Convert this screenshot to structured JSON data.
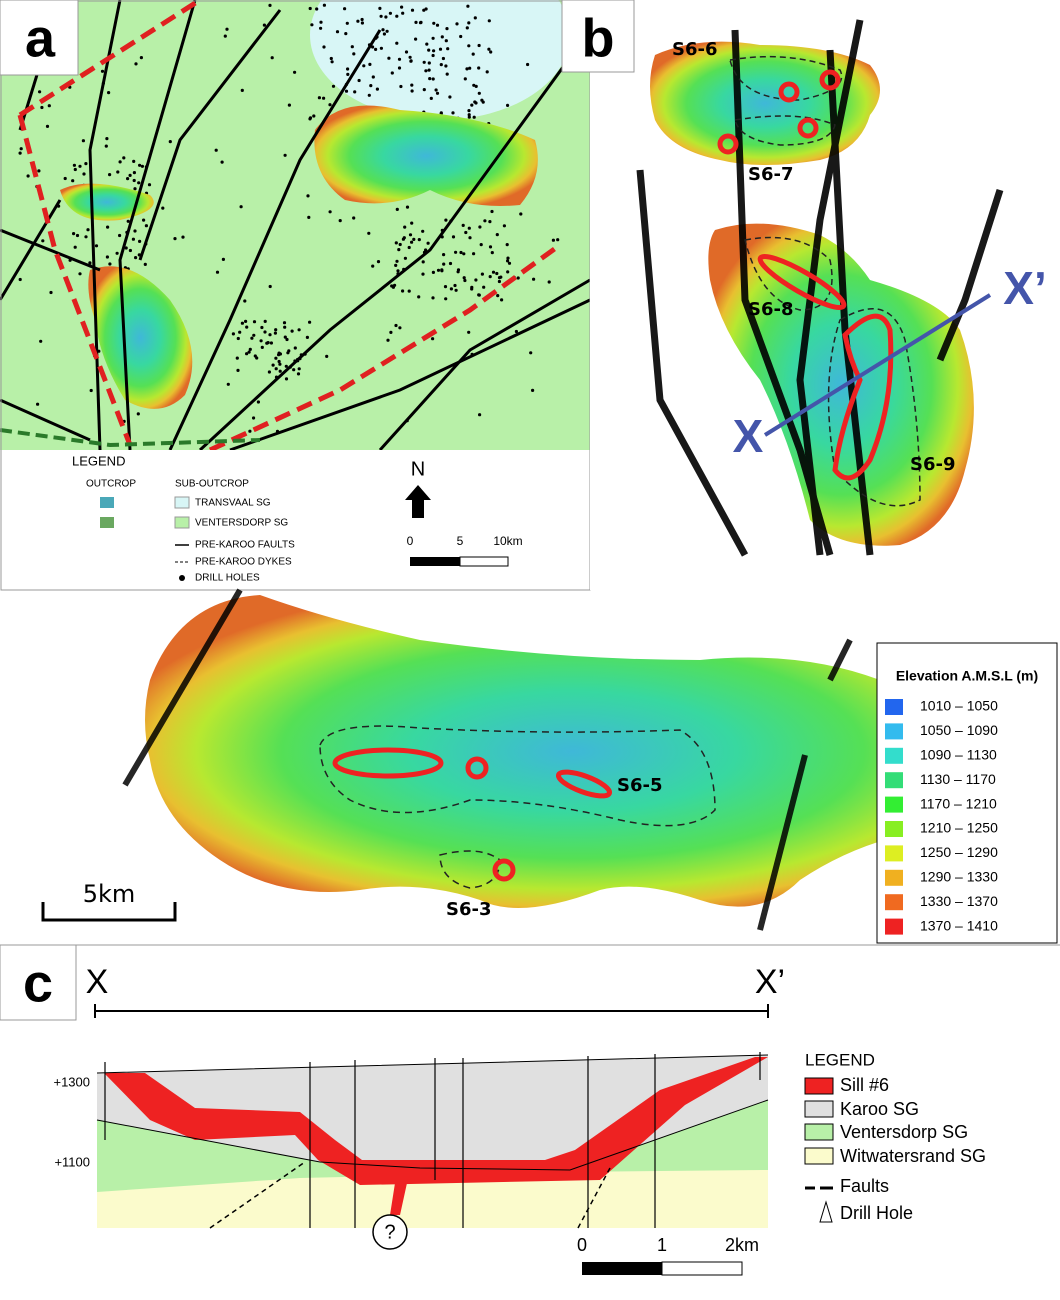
{
  "panel_a": {
    "label": "a",
    "legend": {
      "title": "LEGEND",
      "outcrop": "OUTCROP",
      "sub_outcrop": "SUB-OUTCROP",
      "items": [
        "TRANSVAAL SG",
        "VENTERSDORP SG",
        "PRE-KAROO FAULTS",
        "PRE-KAROO DYKES",
        "DRILL HOLES"
      ]
    },
    "north": "N",
    "scale": [
      "0",
      "5",
      "10km"
    ]
  },
  "panel_b": {
    "label": "b",
    "sills": [
      "S6-6",
      "S6-7",
      "S6-8",
      "S6-9"
    ],
    "section_start": "X",
    "section_end": "X’"
  },
  "panel_middle": {
    "sills": [
      "S6-5",
      "S6-3"
    ],
    "scale": "5km",
    "legend": {
      "title": "Elevation A.M.S.L (m)",
      "items": [
        {
          "label": "1010 – 1050",
          "color": "#2266ee"
        },
        {
          "label": "1050 – 1090",
          "color": "#33bbee"
        },
        {
          "label": "1090 – 1130",
          "color": "#33ddcc"
        },
        {
          "label": "1130 – 1170",
          "color": "#33dd77"
        },
        {
          "label": "1170 – 1210",
          "color": "#33ee33"
        },
        {
          "label": "1210 – 1250",
          "color": "#88ee22"
        },
        {
          "label": "1250 – 1290",
          "color": "#ddee22"
        },
        {
          "label": "1290 – 1330",
          "color": "#f0b020"
        },
        {
          "label": "1330 – 1370",
          "color": "#f06a20"
        },
        {
          "label": "1370 – 1410",
          "color": "#ee2222"
        }
      ]
    }
  },
  "panel_c": {
    "label": "c",
    "section_start": "X",
    "section_end": "X’",
    "depth_labels": [
      "+1300",
      "+1100"
    ],
    "unknown": "?",
    "legend": {
      "title": "LEGEND",
      "items": [
        "Sill #6",
        "Karoo SG",
        "Ventersdorp SG",
        "Witwatersrand SG",
        "Faults",
        "Drill Hole"
      ]
    },
    "scale": [
      "0",
      "1",
      "2km"
    ]
  }
}
